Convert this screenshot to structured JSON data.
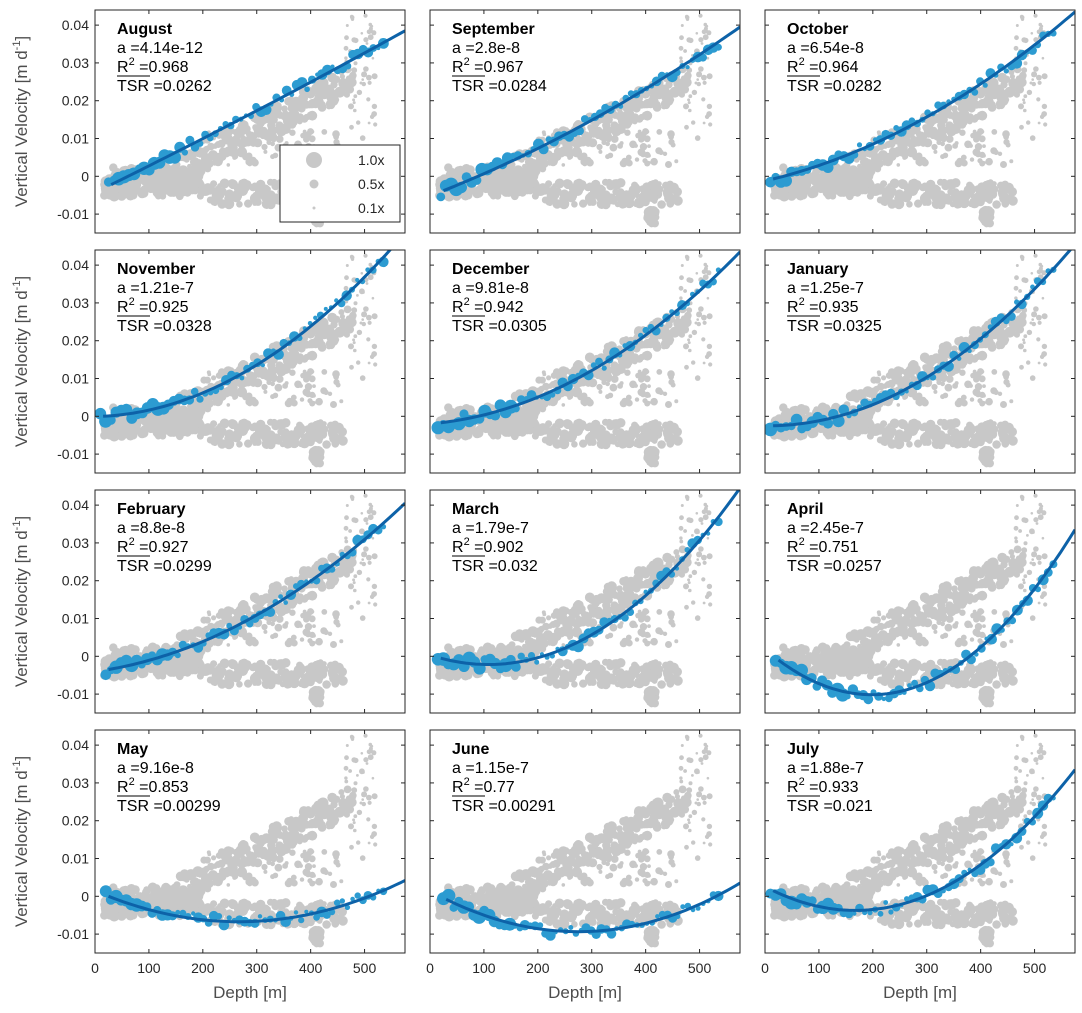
{
  "colors": {
    "gray": "#c8c8c8",
    "blue": "#2c9bd1",
    "line": "#0d62a8",
    "axis": "#262626",
    "label": "#4d4d4d"
  },
  "axes": {
    "xlabel": "Depth [m]",
    "ylabel_main": "Vertical Velocity [m d",
    "ylabel_sup": "-1",
    "ylabel_end": "]",
    "xlim": [
      0,
      575
    ],
    "ylim": [
      -0.015,
      0.044
    ],
    "xticks": [
      0,
      100,
      200,
      300,
      400,
      500
    ],
    "yticks": [
      -0.01,
      0,
      0.01,
      0.02,
      0.03,
      0.04
    ],
    "ytick_labels": [
      "-0.01",
      "0",
      "0.01",
      "0.02",
      "0.03",
      "0.04"
    ],
    "xtick_labels": [
      "0",
      "100",
      "200",
      "300",
      "400",
      "500"
    ]
  },
  "legend": {
    "entries": [
      "1.0x",
      "0.5x",
      "0.1x"
    ],
    "sizes": [
      1.0,
      0.5,
      0.1
    ]
  },
  "chart_data": [
    {
      "type": "scatter",
      "title": "August",
      "a": "a =4.14e-12",
      "r2": "0.968",
      "tsr": "=0.0262",
      "fit": {
        "x0": 30,
        "x1": 575,
        "y0": -0.0022,
        "y1": 0.0385,
        "c": 0.0006
      }
    },
    {
      "type": "scatter",
      "title": "September",
      "a": "a =2.8e-8",
      "r2": "0.967",
      "tsr": "=0.0284",
      "fit": {
        "x0": 25,
        "x1": 575,
        "y0": -0.0038,
        "y1": 0.0395,
        "c": 0.003
      }
    },
    {
      "type": "scatter",
      "title": "October",
      "a": "a =6.54e-8",
      "r2": "0.964",
      "tsr": "=0.0282",
      "fit": {
        "x0": 15,
        "x1": 575,
        "y0": -0.0007,
        "y1": 0.0435,
        "c": 0.0061
      }
    },
    {
      "type": "scatter",
      "title": "November",
      "a": "a =1.21e-7",
      "r2": "0.925",
      "tsr": "=0.0328",
      "fit": {
        "x0": 15,
        "x1": 575,
        "y0": 0.0,
        "y1": 0.0485,
        "c": 0.0111
      }
    },
    {
      "type": "scatter",
      "title": "December",
      "a": "a =9.81e-8",
      "r2": "0.942",
      "tsr": "=0.0305",
      "fit": {
        "x0": 20,
        "x1": 575,
        "y0": -0.0017,
        "y1": 0.0435,
        "c": 0.009
      }
    },
    {
      "type": "scatter",
      "title": "January",
      "a": "a =1.25e-7",
      "r2": "0.935",
      "tsr": "=0.0325",
      "fit": {
        "x0": 15,
        "x1": 575,
        "y0": -0.0025,
        "y1": 0.0455,
        "c": 0.0116
      }
    },
    {
      "type": "scatter",
      "title": "February",
      "a": "a =8.8e-8",
      "r2": "0.927",
      "tsr": "=0.0299",
      "fit": {
        "x0": 25,
        "x1": 575,
        "y0": -0.0035,
        "y1": 0.0405,
        "c": 0.0076
      }
    },
    {
      "type": "scatter",
      "title": "March",
      "a": "a =1.79e-7",
      "r2": "0.902",
      "tsr": "=0.032",
      "fit": {
        "x0": 20,
        "x1": 575,
        "y0": -0.0005,
        "y1": 0.0445,
        "c": 0.0165
      }
    },
    {
      "type": "scatter",
      "title": "April",
      "a": "a =2.45e-7",
      "r2": "0.751",
      "tsr": "=0.0257",
      "fit": {
        "x0": 25,
        "x1": 575,
        "y0": -0.001,
        "y1": 0.0335,
        "c": 0.0232
      }
    },
    {
      "type": "scatter",
      "title": "May",
      "a": "a =9.16e-8",
      "r2": "0.853",
      "tsr": "=0.00299",
      "fit": {
        "x0": 25,
        "x1": 575,
        "y0": 0.0,
        "y1": 0.0042,
        "c": 0.0087
      }
    },
    {
      "type": "scatter",
      "title": "June",
      "a": "a =1.15e-7",
      "r2": "0.77",
      "tsr": "=0.00291",
      "fit": {
        "x0": 30,
        "x1": 575,
        "y0": -0.0008,
        "y1": 0.0035,
        "c": 0.0106
      }
    },
    {
      "type": "scatter",
      "title": "July",
      "a": "a =1.88e-7",
      "r2": "0.933",
      "tsr": "=0.021",
      "fit": {
        "x0": 15,
        "x1": 575,
        "y0": 0.0015,
        "y1": 0.0335,
        "c": 0.0176
      }
    }
  ]
}
